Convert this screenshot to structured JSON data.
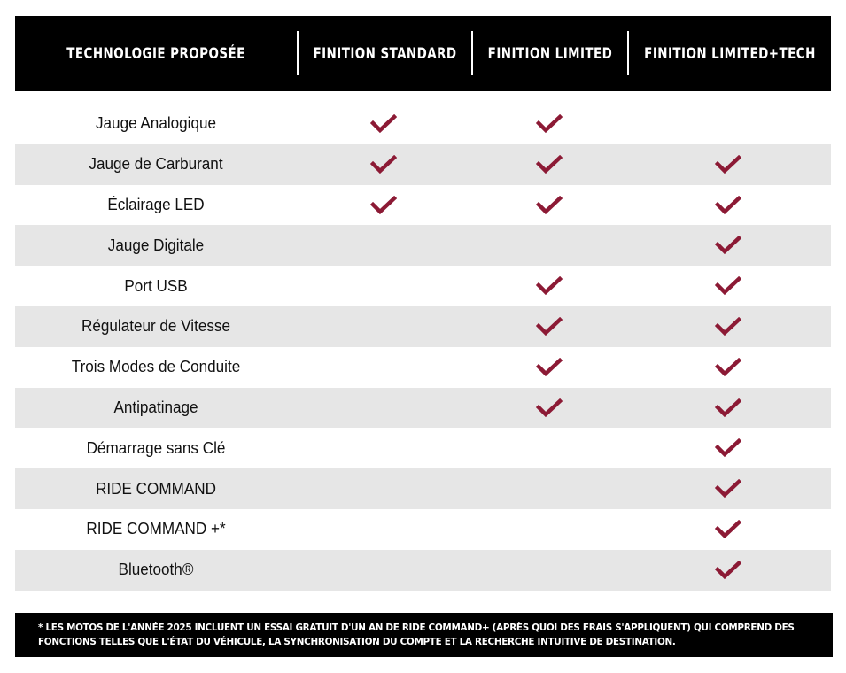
{
  "header": {
    "columns": [
      "TECHNOLOGIE PROPOSÉE",
      "FINITION STANDARD",
      "FINITION LIMITED",
      "FINITION LIMITED+TECH"
    ]
  },
  "colors": {
    "check": "#8c1a35",
    "header_bg": "#000000",
    "alt_row": "#e6e6e6"
  },
  "rows": [
    {
      "feature": "Jauge Analogique",
      "standard": true,
      "limited": true,
      "tech": false
    },
    {
      "feature": "Jauge de Carburant",
      "standard": true,
      "limited": true,
      "tech": true
    },
    {
      "feature": "Éclairage LED",
      "standard": true,
      "limited": true,
      "tech": true
    },
    {
      "feature": "Jauge Digitale",
      "standard": false,
      "limited": false,
      "tech": true
    },
    {
      "feature": "Port USB",
      "standard": false,
      "limited": true,
      "tech": true
    },
    {
      "feature": "Régulateur de Vitesse",
      "standard": false,
      "limited": true,
      "tech": true
    },
    {
      "feature": "Trois Modes de Conduite",
      "standard": false,
      "limited": true,
      "tech": true
    },
    {
      "feature": "Antipatinage",
      "standard": false,
      "limited": true,
      "tech": true
    },
    {
      "feature": "Démarrage sans Clé",
      "standard": false,
      "limited": false,
      "tech": true
    },
    {
      "feature": "RIDE COMMAND",
      "standard": false,
      "limited": false,
      "tech": true
    },
    {
      "feature": "RIDE COMMAND +*",
      "standard": false,
      "limited": false,
      "tech": true
    },
    {
      "feature": "Bluetooth®",
      "standard": false,
      "limited": false,
      "tech": true
    }
  ],
  "footnote": "* LES MOTOS DE L'ANNÉE 2025 INCLUENT UN ESSAI GRATUIT D'UN AN DE RIDE COMMAND+ (APRÈS QUOI DES FRAIS S'APPLIQUENT) QUI COMPREND DES FONCTIONS TELLES QUE L'ÉTAT DU VÉHICULE, LA SYNCHRONISATION DU COMPTE ET LA RECHERCHE INTUITIVE DE DESTINATION."
}
